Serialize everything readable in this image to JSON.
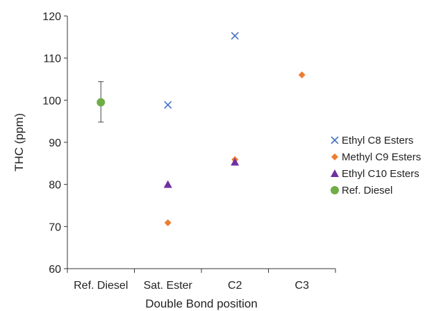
{
  "chart_data": {
    "type": "scatter",
    "xlabel": "Double Bond position",
    "ylabel": "THC (ppm)",
    "categories": [
      "Ref. Diesel",
      "Sat. Ester",
      "C2",
      "C3"
    ],
    "ylim": [
      60,
      120
    ],
    "yticks": [
      60,
      70,
      80,
      90,
      100,
      110,
      120
    ],
    "grid": false,
    "legend_position": "right",
    "series": [
      {
        "name": "Ethyl C8 Esters",
        "marker": "x",
        "color": "#4472C4",
        "points": [
          {
            "x": "Sat. Ester",
            "y": 98.9
          },
          {
            "x": "C2",
            "y": 115.3
          }
        ]
      },
      {
        "name": "Methyl C9 Esters",
        "marker": "diamond",
        "color": "#ED7D31",
        "points": [
          {
            "x": "Sat. Ester",
            "y": 70.9
          },
          {
            "x": "C2",
            "y": 85.9
          },
          {
            "x": "C3",
            "y": 106.0
          }
        ]
      },
      {
        "name": "Ethyl C10 Esters",
        "marker": "triangle",
        "color": "#7030A0",
        "points": [
          {
            "x": "Sat. Ester",
            "y": 80.0
          },
          {
            "x": "C2",
            "y": 85.3
          }
        ]
      },
      {
        "name": "Ref. Diesel",
        "marker": "circle",
        "color": "#70AD47",
        "points": [
          {
            "x": "Ref. Diesel",
            "y": 99.5,
            "error_low": 94.8,
            "error_high": 104.4
          }
        ]
      }
    ]
  }
}
